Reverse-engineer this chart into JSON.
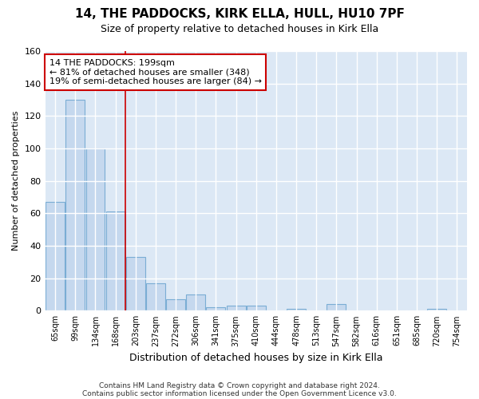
{
  "title_line1": "14, THE PADDOCKS, KIRK ELLA, HULL, HU10 7PF",
  "title_line2": "Size of property relative to detached houses in Kirk Ella",
  "xlabel": "Distribution of detached houses by size in Kirk Ella",
  "ylabel": "Number of detached properties",
  "categories": [
    "65sqm",
    "99sqm",
    "134sqm",
    "168sqm",
    "203sqm",
    "237sqm",
    "272sqm",
    "306sqm",
    "341sqm",
    "375sqm",
    "410sqm",
    "444sqm",
    "478sqm",
    "513sqm",
    "547sqm",
    "582sqm",
    "616sqm",
    "651sqm",
    "685sqm",
    "720sqm",
    "754sqm"
  ],
  "values": [
    67,
    130,
    100,
    61,
    33,
    17,
    7,
    10,
    2,
    3,
    3,
    0,
    1,
    0,
    4,
    0,
    0,
    0,
    0,
    1,
    0
  ],
  "bar_color": "#c5d8ee",
  "bar_edge_color": "#7aadd4",
  "highlight_line_color": "#cc0000",
  "annotation_text_line1": "14 THE PADDOCKS: 199sqm",
  "annotation_text_line2": "← 81% of detached houses are smaller (348)",
  "annotation_text_line3": "19% of semi-detached houses are larger (84) →",
  "annotation_box_color": "#ffffff",
  "annotation_box_edge_color": "#cc0000",
  "ylim": [
    0,
    160
  ],
  "yticks": [
    0,
    20,
    40,
    60,
    80,
    100,
    120,
    140,
    160
  ],
  "background_color": "#dce8f5",
  "grid_color": "#ffffff",
  "footer_line1": "Contains HM Land Registry data © Crown copyright and database right 2024.",
  "footer_line2": "Contains public sector information licensed under the Open Government Licence v3.0.",
  "fig_bg": "#ffffff"
}
